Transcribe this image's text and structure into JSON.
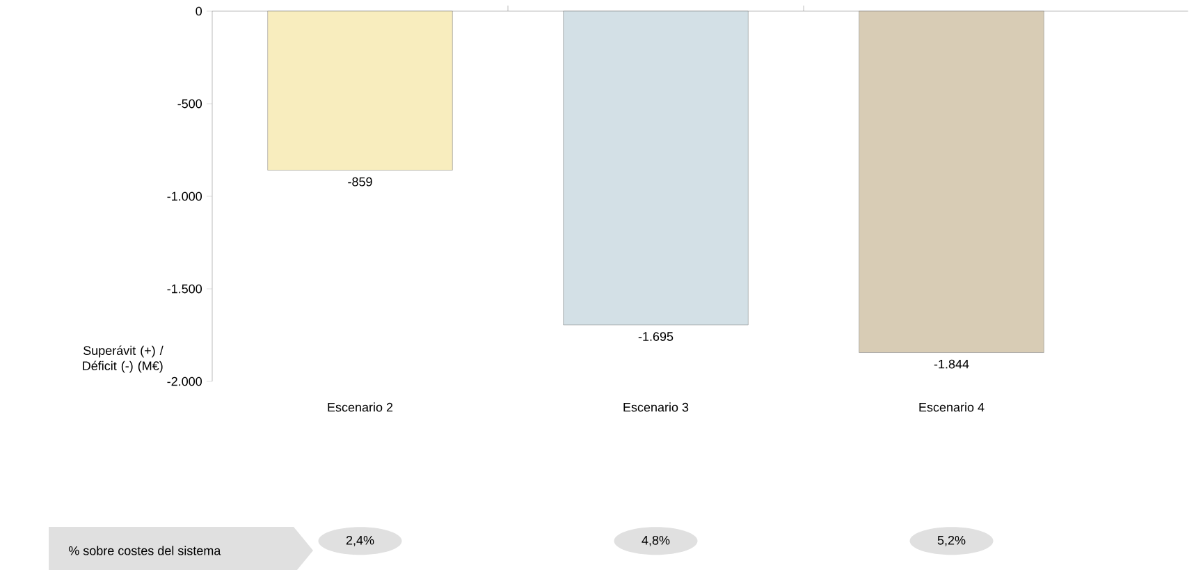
{
  "chart_data": {
    "type": "bar",
    "ylabel": "Superávit (+) / Déficit (-) (M€)",
    "categories": [
      "Escenario 2",
      "Escenario 3",
      "Escenario 4"
    ],
    "values": [
      -859,
      -1695,
      -1844
    ],
    "value_labels": [
      "-859",
      "-1.695",
      "-1.844"
    ],
    "colors": [
      "#f8edbe",
      "#d3e0e6",
      "#d8ccb5"
    ],
    "ylim": [
      -2000,
      0
    ],
    "yticks": [
      {
        "value": -2000,
        "label": "-2.000"
      },
      {
        "value": -1500,
        "label": "-1.500"
      },
      {
        "value": -1000,
        "label": "-1.000"
      },
      {
        "value": -500,
        "label": "-500"
      },
      0
    ],
    "grid": false,
    "annotations": [
      "% sobre costes del sistema",
      "2,4%",
      "4,8%",
      "5,2%"
    ]
  }
}
